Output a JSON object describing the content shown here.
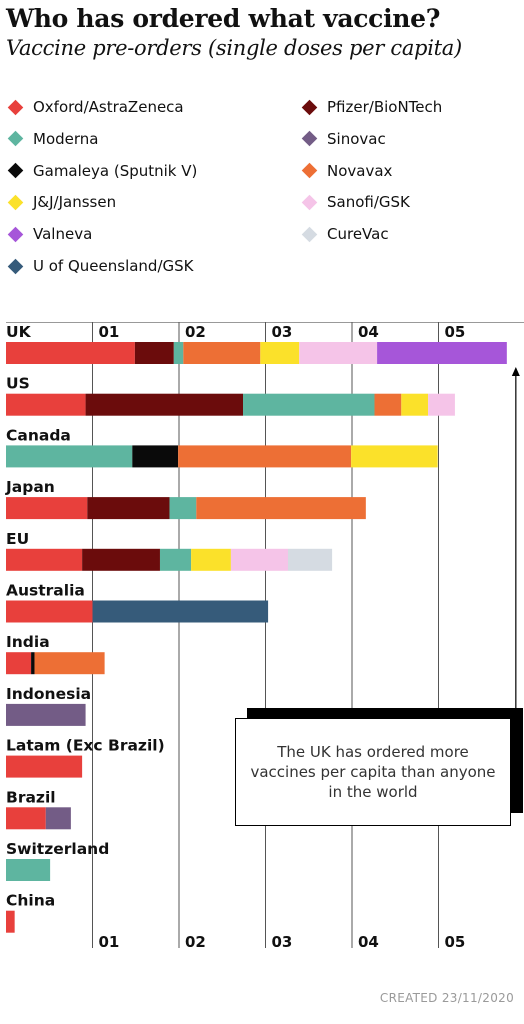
{
  "title": "Who has ordered what vaccine?",
  "subtitle": "Vaccine pre-orders (single doses per capita)",
  "legend": [
    {
      "name": "Oxford/AstraZeneca",
      "color": "#e8403c",
      "icon": "diamond-icon"
    },
    {
      "name": "Pfizer/BioNTech",
      "color": "#6b0c0c",
      "icon": "diamond-icon"
    },
    {
      "name": "Moderna",
      "color": "#5eb5a0",
      "icon": "diamond-icon"
    },
    {
      "name": "Sinovac",
      "color": "#735c86",
      "icon": "diamond-icon"
    },
    {
      "name": "Gamaleya (Sputnik V)",
      "color": "#0a0a0a",
      "icon": "diamond-icon"
    },
    {
      "name": "Novavax",
      "color": "#ed6f35",
      "icon": "diamond-icon"
    },
    {
      "name": "J&J/Janssen",
      "color": "#fbe12a",
      "icon": "diamond-icon"
    },
    {
      "name": "Sanofi/GSK",
      "color": "#f5c4e8",
      "icon": "diamond-icon"
    },
    {
      "name": "Valneva",
      "color": "#a656d9",
      "icon": "diamond-icon"
    },
    {
      "name": "CureVac",
      "color": "#d5dbe2",
      "icon": "diamond-icon"
    },
    {
      "name": "U of Queensland/GSK",
      "color": "#365b7a",
      "icon": "diamond-icon"
    }
  ],
  "chart_data": {
    "type": "bar",
    "orientation": "horizontal",
    "stacked": true,
    "title": "Who has ordered what vaccine?",
    "subtitle": "Vaccine pre-orders (single doses per capita)",
    "xlim": [
      0,
      5.8
    ],
    "xticks": [
      1,
      2,
      3,
      4,
      5
    ],
    "xtick_labels": [
      "01",
      "02",
      "03",
      "04",
      "05"
    ],
    "grid": true,
    "legend_position": "top",
    "categories": [
      "UK",
      "US",
      "Canada",
      "Japan",
      "EU",
      "Australia",
      "India",
      "Indonesia",
      "Latam (Exc Brazil)",
      "Brazil",
      "Switzerland",
      "China"
    ],
    "series": [
      {
        "name": "Oxford/AstraZeneca",
        "color": "#e8403c",
        "values": [
          1.49,
          0.92,
          0,
          0.94,
          0.88,
          1.0,
          0.29,
          0,
          0.88,
          0.46,
          0,
          0.1
        ]
      },
      {
        "name": "Pfizer/BioNTech",
        "color": "#6b0c0c",
        "values": [
          0.45,
          1.82,
          0,
          0.95,
          0.9,
          0,
          0,
          0,
          0,
          0,
          0,
          0
        ]
      },
      {
        "name": "Moderna",
        "color": "#5eb5a0",
        "values": [
          0.11,
          1.52,
          1.46,
          0.31,
          0.36,
          0,
          0,
          0,
          0,
          0,
          0.51,
          0
        ]
      },
      {
        "name": "Sinovac",
        "color": "#735c86",
        "values": [
          0,
          0,
          0,
          0,
          0,
          0,
          0,
          0.92,
          0,
          0.29,
          0,
          0
        ]
      },
      {
        "name": "Gamaleya (Sputnik V)",
        "color": "#0a0a0a",
        "values": [
          0,
          0,
          0.53,
          0,
          0,
          0,
          0.04,
          0,
          0,
          0,
          0,
          0
        ]
      },
      {
        "name": "Novavax",
        "color": "#ed6f35",
        "values": [
          0.89,
          0.31,
          2.0,
          1.96,
          0,
          0,
          0.81,
          0,
          0,
          0,
          0,
          0
        ]
      },
      {
        "name": "J&J/Janssen",
        "color": "#fbe12a",
        "values": [
          0.45,
          0.31,
          1.0,
          0,
          0.46,
          0,
          0,
          0,
          0,
          0,
          0,
          0
        ]
      },
      {
        "name": "Sanofi/GSK",
        "color": "#f5c4e8",
        "values": [
          0.9,
          0.31,
          0,
          0,
          0.66,
          0,
          0,
          0,
          0,
          0,
          0,
          0
        ]
      },
      {
        "name": "Valneva",
        "color": "#a656d9",
        "values": [
          1.5,
          0,
          0,
          0,
          0,
          0,
          0,
          0,
          0,
          0,
          0,
          0
        ]
      },
      {
        "name": "CureVac",
        "color": "#d5dbe2",
        "values": [
          0,
          0,
          0,
          0,
          0.51,
          0,
          0,
          0,
          0,
          0,
          0,
          0
        ]
      },
      {
        "name": "U of Queensland/GSK",
        "color": "#365b7a",
        "values": [
          0,
          0,
          0,
          0,
          0,
          2.03,
          0,
          0,
          0,
          0,
          0,
          0
        ]
      }
    ],
    "annotation": "The UK has ordered more vaccines per capita than anyone in the world"
  },
  "footer": "CREATED 23/11/2020"
}
